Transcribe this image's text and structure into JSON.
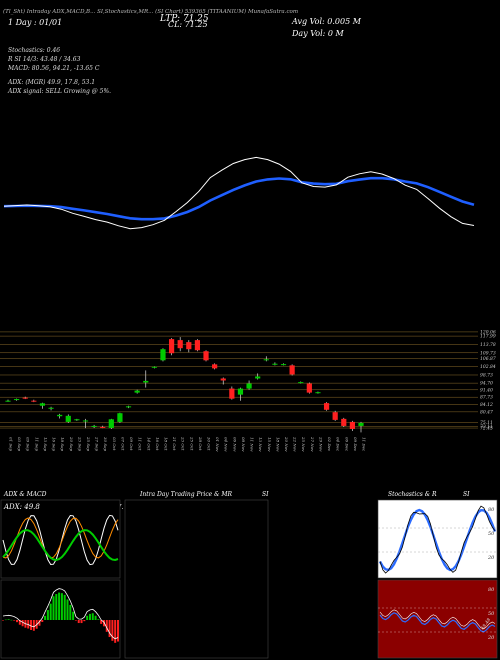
{
  "header": {
    "top_line": "(Tl_Sht) Intraday ADX,MACD,B...  SI,Stochastics,MR...  (SI Chart) 539365  (TITAANIUM) MunafaSutra.com",
    "ltp": "LTP: 71.25",
    "day_line": "1 Day : 01/01",
    "cl_line": "CL: 71.25",
    "avg_vol": "Avg Vol: 0.005 M",
    "day_vol": "Day Vol: 0   M"
  },
  "indicators": {
    "stochastics": "Stochastics: 0.46",
    "rsi": "R       SI 14/3: 43.48 / 34.63",
    "macd": "MACD: 80.56,  94.21, -13.65 C",
    "adx": "ADX:                      (MGR) 49.9,  17.8,  53.1",
    "adx_signal": "ADX  signal: SELL Growing @ 5%."
  },
  "chart_data": {
    "type": "candlestick",
    "dates": [
      "01 Sep",
      "03 Sep",
      "09 Sep",
      "11 Sep",
      "13 Sep",
      "16 Sep",
      "18 Sep",
      "20 Sep",
      "23 Sep",
      "25 Sep",
      "27 Sep",
      "30 Sep",
      "03 Oct",
      "07 Oct",
      "09 Oct",
      "11 Oct",
      "14 Oct",
      "16 Oct",
      "18 Oct",
      "21 Oct",
      "23 Oct",
      "25 Oct",
      "28 Oct",
      "30 Oct",
      "01 Nov",
      "04 Nov",
      "06 Nov",
      "08 Nov",
      "11 Nov",
      "13 Nov",
      "15 Nov",
      "18 Nov",
      "20 Nov",
      "22 Nov",
      "25 Nov",
      "27 Nov",
      "29 Nov",
      "02 Dec",
      "04 Dec",
      "06 Dec",
      "09 Dec",
      "11 Dec"
    ],
    "price_levels": [
      120.06,
      117.99,
      113.78,
      109.73,
      106.87,
      102.84,
      98.73,
      94.7,
      91.4,
      87.73,
      84.12,
      80.47,
      75.11,
      73.11,
      72.45
    ],
    "candles": [
      {
        "o": 86,
        "h": 86.5,
        "l": 85.5,
        "c": 86
      },
      {
        "o": 86.5,
        "h": 87,
        "l": 86,
        "c": 86.8
      },
      {
        "o": 87.5,
        "h": 88,
        "l": 86.8,
        "c": 87
      },
      {
        "o": 86,
        "h": 86.5,
        "l": 85.3,
        "c": 85.6
      },
      {
        "o": 83.5,
        "h": 85,
        "l": 82,
        "c": 84.7
      },
      {
        "o": 82,
        "h": 83,
        "l": 81.2,
        "c": 82.5
      },
      {
        "o": 78.3,
        "h": 79.5,
        "l": 77.2,
        "c": 79
      },
      {
        "o": 75.5,
        "h": 79.2,
        "l": 75,
        "c": 78.5
      },
      {
        "o": 76.5,
        "h": 77,
        "l": 76,
        "c": 76.8
      },
      {
        "o": 75.8,
        "h": 77,
        "l": 72.4,
        "c": 76.2
      },
      {
        "o": 73.2,
        "h": 74,
        "l": 72.5,
        "c": 73.5
      },
      {
        "o": 73,
        "h": 73.6,
        "l": 72.4,
        "c": 72.8
      },
      {
        "o": 72.5,
        "h": 77,
        "l": 72,
        "c": 76.8
      },
      {
        "o": 75.5,
        "h": 80,
        "l": 75,
        "c": 79.8
      },
      {
        "o": 82.8,
        "h": 83.5,
        "l": 82.3,
        "c": 83.2
      },
      {
        "o": 90,
        "h": 91.5,
        "l": 89.5,
        "c": 91
      },
      {
        "o": 95,
        "h": 101,
        "l": 92.5,
        "c": 95.8
      },
      {
        "o": 102.5,
        "h": 103,
        "l": 102,
        "c": 102.8
      },
      {
        "o": 106,
        "h": 112,
        "l": 105.5,
        "c": 111.5
      },
      {
        "o": 116.5,
        "h": 117,
        "l": 108.5,
        "c": 109.5
      },
      {
        "o": 116,
        "h": 117.5,
        "l": 110.5,
        "c": 112
      },
      {
        "o": 115,
        "h": 116,
        "l": 110,
        "c": 111.5
      },
      {
        "o": 116,
        "h": 116.5,
        "l": 110.5,
        "c": 111
      },
      {
        "o": 110.5,
        "h": 111,
        "l": 105.5,
        "c": 106
      },
      {
        "o": 104,
        "h": 104.5,
        "l": 101.5,
        "c": 102
      },
      {
        "o": 97,
        "h": 97.5,
        "l": 94,
        "c": 96
      },
      {
        "o": 92,
        "h": 93,
        "l": 86.5,
        "c": 87
      },
      {
        "o": 89,
        "h": 92.5,
        "l": 86,
        "c": 92
      },
      {
        "o": 92,
        "h": 96,
        "l": 91.5,
        "c": 94.5
      },
      {
        "o": 97,
        "h": 99.5,
        "l": 96.5,
        "c": 98
      },
      {
        "o": 106,
        "h": 108,
        "l": 105.5,
        "c": 106.5
      },
      {
        "o": 104,
        "h": 105,
        "l": 103.5,
        "c": 104.3
      },
      {
        "o": 104,
        "h": 104.5,
        "l": 103.5,
        "c": 104.1
      },
      {
        "o": 103.5,
        "h": 104,
        "l": 98.5,
        "c": 99
      },
      {
        "o": 95,
        "h": 95.5,
        "l": 94.5,
        "c": 95.2
      },
      {
        "o": 94.5,
        "h": 95,
        "l": 89.5,
        "c": 90
      },
      {
        "o": 90,
        "h": 90.5,
        "l": 89.5,
        "c": 90.2
      },
      {
        "o": 84.8,
        "h": 85.3,
        "l": 81,
        "c": 81.5
      },
      {
        "o": 80.3,
        "h": 81,
        "l": 76,
        "c": 76.5
      },
      {
        "o": 77,
        "h": 77.5,
        "l": 73,
        "c": 73.5
      },
      {
        "o": 75.5,
        "h": 76,
        "l": 71,
        "c": 72
      },
      {
        "o": 73.5,
        "h": 75.5,
        "l": 70.3,
        "c": 75
      }
    ],
    "panels": {
      "adx_macd": {
        "title": "ADX  & MACD",
        "adx_value": "ADX: 49.8",
        "right_label": "6   +DI: 17."
      },
      "intraday": {
        "title": "Intra  Day Trading Price  & MR",
        "right": "SI"
      },
      "stochastics": {
        "title": "Stochastics & R",
        "right": "SI",
        "levels": [
          "80",
          "50",
          "20"
        ],
        "mrsi_levels": [
          "80",
          "50",
          "20"
        ],
        "end_label": "48.48"
      }
    }
  },
  "colors": {
    "up": "#00cc00",
    "down": "#ff2020",
    "ema": "#1f5fff",
    "grid": "#8a6a2a",
    "rsi_bg": "#8b0000",
    "stoch_line": "#2b6bff"
  }
}
